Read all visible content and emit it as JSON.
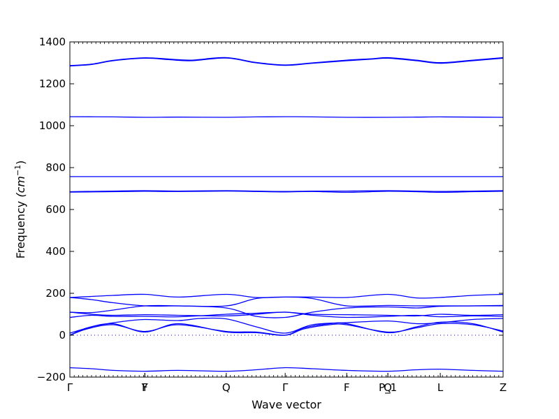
{
  "chart_data": {
    "type": "line",
    "title": "",
    "xlabel": "Wave vector",
    "ylabel": "Frequency ($cm^{-1}$)",
    "ylabel_prefix": "Frequency ",
    "ylabel_unit": "(cm",
    "ylabel_exp": "−1",
    "ylabel_suffix": ")",
    "ylim": [
      -200,
      1400
    ],
    "yticks": [
      -200,
      0,
      200,
      400,
      600,
      800,
      1000,
      1200,
      1400
    ],
    "yticks_labels": [
      "−200",
      "0",
      "200",
      "400",
      "600",
      "800",
      "1000",
      "1200",
      "1400"
    ],
    "xlim": [
      0,
      1
    ],
    "high_symmetry_points": [
      {
        "pos": 0.0,
        "label": "Γ"
      },
      {
        "pos": 0.173,
        "label": "Y"
      },
      {
        "pos": 0.173,
        "label": "F"
      },
      {
        "pos": 0.361,
        "label": "Q"
      },
      {
        "pos": 0.497,
        "label": "Γ"
      },
      {
        "pos": 0.639,
        "label": "F"
      },
      {
        "pos": 0.734,
        "label": "P_1"
      },
      {
        "pos": 0.734,
        "label": "Q"
      },
      {
        "pos": 0.855,
        "label": "L"
      },
      {
        "pos": 1.0,
        "label": "Z"
      }
    ],
    "series_color": "#0000ff",
    "zero_line": {
      "y": 0,
      "style": "dotted",
      "color": "#0000ff"
    },
    "series": [
      {
        "x": [
          0,
          0.05,
          0.1,
          0.173,
          0.25,
          0.361,
          0.43,
          0.497,
          0.56,
          0.639,
          0.734,
          0.8,
          0.855,
          0.93,
          1.0
        ],
        "y": [
          -155,
          -160,
          -168,
          -172,
          -168,
          -172,
          -165,
          -155,
          -160,
          -168,
          -172,
          -165,
          -162,
          -168,
          -172
        ]
      },
      {
        "x": [
          0,
          0.04,
          0.1,
          0.173,
          0.25,
          0.361,
          0.43,
          0.497,
          0.54,
          0.6,
          0.639,
          0.734,
          0.8,
          0.855,
          0.93,
          1.0
        ],
        "y": [
          0,
          30,
          50,
          18,
          50,
          18,
          15,
          0,
          30,
          50,
          50,
          15,
          35,
          55,
          50,
          20
        ]
      },
      {
        "x": [
          0,
          0.04,
          0.1,
          0.173,
          0.25,
          0.361,
          0.43,
          0.497,
          0.54,
          0.6,
          0.639,
          0.734,
          0.8,
          0.855,
          0.93,
          1.0
        ],
        "y": [
          0,
          35,
          55,
          15,
          55,
          15,
          12,
          0,
          35,
          55,
          55,
          12,
          40,
          62,
          55,
          15
        ]
      },
      {
        "x": [
          0,
          0.06,
          0.12,
          0.173,
          0.25,
          0.3,
          0.361,
          0.43,
          0.497,
          0.56,
          0.639,
          0.734,
          0.8,
          0.855,
          0.93,
          1.0
        ],
        "y": [
          10,
          45,
          65,
          75,
          70,
          80,
          78,
          40,
          10,
          50,
          60,
          68,
          55,
          60,
          75,
          80
        ]
      },
      {
        "x": [
          0,
          0.05,
          0.1,
          0.173,
          0.25,
          0.361,
          0.43,
          0.497,
          0.56,
          0.639,
          0.734,
          0.8,
          0.855,
          0.93,
          1.0
        ],
        "y": [
          110,
          100,
          95,
          98,
          95,
          92,
          100,
          110,
          95,
          85,
          90,
          95,
          88,
          92,
          90
        ]
      },
      {
        "x": [
          0,
          0.05,
          0.1,
          0.173,
          0.25,
          0.361,
          0.43,
          0.497,
          0.56,
          0.639,
          0.734,
          0.8,
          0.855,
          0.93,
          1.0
        ],
        "y": [
          85,
          95,
          90,
          90,
          88,
          100,
          105,
          110,
          100,
          98,
          95,
          92,
          100,
          95,
          98
        ]
      },
      {
        "x": [
          0,
          0.05,
          0.1,
          0.173,
          0.25,
          0.361,
          0.43,
          0.497,
          0.56,
          0.639,
          0.734,
          0.8,
          0.855,
          0.93,
          1.0
        ],
        "y": [
          180,
          170,
          155,
          140,
          140,
          140,
          175,
          182,
          175,
          140,
          142,
          140,
          140,
          140,
          140
        ]
      },
      {
        "x": [
          0,
          0.05,
          0.1,
          0.173,
          0.25,
          0.361,
          0.43,
          0.497,
          0.56,
          0.639,
          0.734,
          0.8,
          0.855,
          0.93,
          1.0
        ],
        "y": [
          110,
          108,
          120,
          140,
          140,
          130,
          90,
          85,
          110,
          130,
          135,
          130,
          138,
          140,
          142
        ]
      },
      {
        "x": [
          0,
          0.05,
          0.1,
          0.173,
          0.25,
          0.361,
          0.43,
          0.497,
          0.56,
          0.639,
          0.734,
          0.8,
          0.855,
          0.93,
          1.0
        ],
        "y": [
          180,
          185,
          190,
          195,
          182,
          195,
          180,
          182,
          182,
          180,
          195,
          178,
          180,
          190,
          195
        ]
      },
      {
        "x": [
          0,
          0.1,
          0.173,
          0.25,
          0.361,
          0.43,
          0.497,
          0.56,
          0.639,
          0.734,
          0.8,
          0.855,
          0.93,
          1.0
        ],
        "y": [
          685,
          688,
          690,
          688,
          690,
          688,
          686,
          688,
          688,
          690,
          688,
          686,
          688,
          690
        ]
      },
      {
        "x": [
          0,
          0.1,
          0.173,
          0.25,
          0.361,
          0.43,
          0.497,
          0.56,
          0.639,
          0.734,
          0.8,
          0.855,
          0.93,
          1.0
        ],
        "y": [
          683,
          685,
          687,
          686,
          688,
          686,
          684,
          686,
          682,
          687,
          685,
          682,
          685,
          687
        ]
      },
      {
        "x": [
          0,
          0.25,
          0.497,
          0.75,
          1.0
        ],
        "y": [
          757,
          757,
          757,
          757,
          757
        ]
      },
      {
        "x": [
          0,
          0.1,
          0.173,
          0.25,
          0.361,
          0.43,
          0.497,
          0.56,
          0.639,
          0.734,
          0.8,
          0.855,
          0.93,
          1.0
        ],
        "y": [
          1043,
          1042,
          1040,
          1041,
          1040,
          1042,
          1043,
          1042,
          1040,
          1040,
          1041,
          1042,
          1041,
          1040
        ]
      },
      {
        "x": [
          0,
          0.05,
          0.1,
          0.173,
          0.23,
          0.28,
          0.361,
          0.43,
          0.497,
          0.56,
          0.639,
          0.7,
          0.734,
          0.8,
          0.855,
          0.93,
          1.0
        ],
        "y": [
          1285,
          1292,
          1310,
          1322,
          1315,
          1310,
          1323,
          1300,
          1288,
          1298,
          1310,
          1318,
          1322,
          1310,
          1298,
          1310,
          1322
        ]
      },
      {
        "x": [
          0,
          0.05,
          0.1,
          0.173,
          0.23,
          0.28,
          0.361,
          0.43,
          0.497,
          0.56,
          0.639,
          0.7,
          0.734,
          0.8,
          0.855,
          0.93,
          1.0
        ],
        "y": [
          1287,
          1294,
          1312,
          1324,
          1318,
          1313,
          1325,
          1302,
          1290,
          1300,
          1313,
          1320,
          1325,
          1313,
          1301,
          1313,
          1325
        ]
      }
    ]
  }
}
